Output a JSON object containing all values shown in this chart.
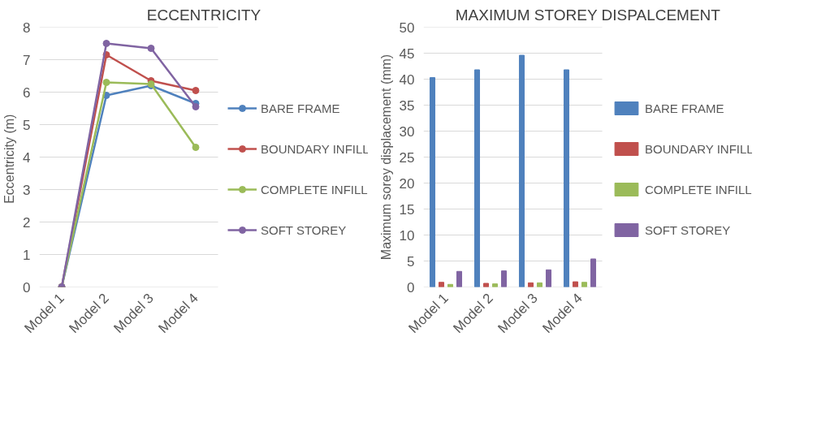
{
  "chart_data": [
    {
      "type": "line",
      "title": "ECCENTRICITY",
      "ylabel": "Eccentricity  (m)",
      "categories": [
        "Model 1",
        "Model 2",
        "Model 3",
        "Model 4"
      ],
      "ylim": [
        0,
        8
      ],
      "yticks": [
        0,
        1,
        2,
        3,
        4,
        5,
        6,
        7,
        8
      ],
      "grid": "y",
      "legend": "right",
      "marker": "circle",
      "line_style": "solid",
      "series": [
        {
          "name": "BARE FRAME",
          "color": "#4f81bd",
          "values": [
            0,
            5.9,
            6.2,
            5.65
          ]
        },
        {
          "name": "BOUNDARY INFILL",
          "color": "#c0504d",
          "values": [
            0,
            7.15,
            6.35,
            6.05
          ]
        },
        {
          "name": "COMPLETE INFILL",
          "color": "#9bbb59",
          "values": [
            0,
            6.3,
            6.25,
            4.3
          ]
        },
        {
          "name": "SOFT STOREY",
          "color": "#8064a2",
          "values": [
            0,
            7.5,
            7.35,
            5.55
          ]
        }
      ]
    },
    {
      "type": "bar",
      "title": "MAXIMUM STOREY DISPALCEMENT",
      "ylabel": "Maximum sorey displacement (mm)",
      "categories": [
        "Model 1",
        "Model 2",
        "Model 3",
        "Model 4"
      ],
      "ylim": [
        0,
        50
      ],
      "yticks": [
        0,
        5,
        10,
        15,
        20,
        25,
        30,
        35,
        40,
        45,
        50
      ],
      "grid": "y",
      "legend": "right",
      "series": [
        {
          "name": "BARE FRAME",
          "color": "#4f81bd",
          "values": [
            40.3,
            41.8,
            44.6,
            41.8
          ]
        },
        {
          "name": "BOUNDARY INFILL",
          "color": "#c0504d",
          "values": [
            0.9,
            0.7,
            0.8,
            1.0
          ]
        },
        {
          "name": "COMPLETE INFILL",
          "color": "#9bbb59",
          "values": [
            0.5,
            0.6,
            0.8,
            0.9
          ]
        },
        {
          "name": "SOFT STOREY",
          "color": "#8064a2",
          "values": [
            3.0,
            3.1,
            3.3,
            5.4
          ]
        }
      ]
    }
  ]
}
